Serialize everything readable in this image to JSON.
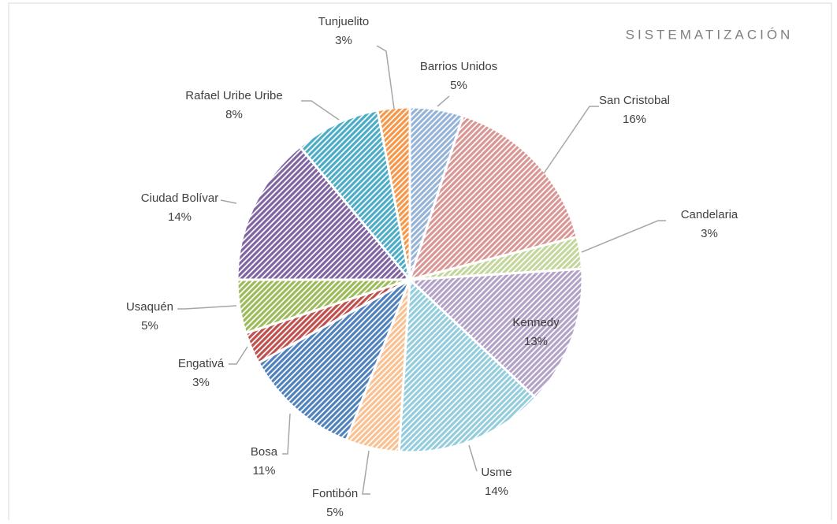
{
  "chart_data": {
    "type": "pie",
    "title": "SISTEMATIZACIÓN",
    "categories": [
      "Barrios Unidos",
      "San Cristobal",
      "Candelaria",
      "Kennedy",
      "Usme",
      "Fontibón",
      "Bosa",
      "Engativá",
      "Usaquén",
      "Ciudad Bolívar",
      "Rafael Uribe Uribe",
      "Tunjuelito"
    ],
    "values": [
      5,
      16,
      3,
      13,
      14,
      5,
      11,
      3,
      5,
      14,
      8,
      3
    ],
    "value_labels": [
      "5%",
      "16%",
      "3%",
      "13%",
      "14%",
      "5%",
      "11%",
      "3%",
      "5%",
      "14%",
      "8%",
      "3%"
    ],
    "colors": [
      "#95b3d7",
      "#d99694",
      "#c3d69b",
      "#b3a2c7",
      "#93cddd",
      "#fac090",
      "#4f81bd",
      "#c0504d",
      "#9bbb59",
      "#8064a2",
      "#4bacc6",
      "#f79646"
    ]
  }
}
